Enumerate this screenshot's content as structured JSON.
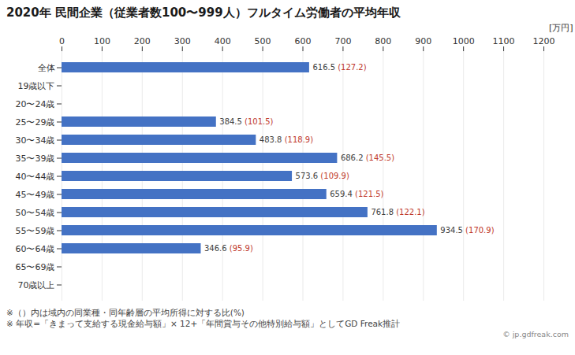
{
  "chart_data": {
    "type": "bar",
    "orientation": "horizontal",
    "title": "2020年 民間企業（従業者数100〜999人）フルタイム労働者の平均年収",
    "xlabel": "[万円]",
    "categories": [
      "全体",
      "19歳以下",
      "20〜24歳",
      "25〜29歳",
      "30〜34歳",
      "35〜39歳",
      "40〜44歳",
      "45〜49歳",
      "50〜54歳",
      "55〜59歳",
      "60〜64歳",
      "65〜69歳",
      "70歳以上"
    ],
    "values": [
      616.5,
      null,
      null,
      384.5,
      483.8,
      686.2,
      573.6,
      659.4,
      761.8,
      934.5,
      346.6,
      null,
      null
    ],
    "ratios": [
      127.2,
      null,
      null,
      101.5,
      118.9,
      145.5,
      109.9,
      121.5,
      122.1,
      170.9,
      95.9,
      null,
      null
    ],
    "color": "#4472c4",
    "xlim": [
      0,
      1200
    ],
    "xticks": [
      0,
      100,
      200,
      300,
      400,
      500,
      600,
      700,
      800,
      900,
      1000,
      1100,
      1200
    ],
    "grid": true,
    "data_labels": true,
    "annotations": [
      "※（）内は域内の同業種・同年齢層の平均所得に対する比(%)",
      "※ 年収=「きまって支給する現金給与額」× 12+「年間賞与その他特別給与額」としてGD Freak推計",
      "© jp.gdfreak.com"
    ]
  }
}
